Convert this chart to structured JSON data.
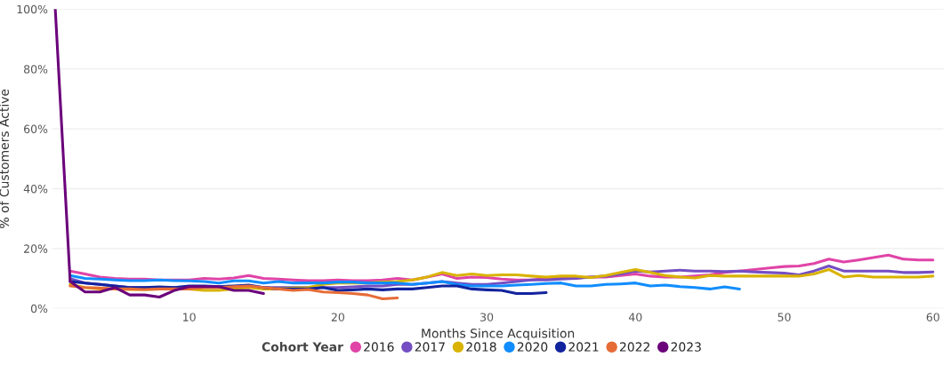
{
  "chart_data": {
    "type": "line",
    "xlabel": "Months Since Acquisition",
    "ylabel": "% of Customers Active",
    "legend_title": "Cohort Year",
    "xlim": [
      0.8,
      60.7
    ],
    "xticks": [
      10,
      20,
      30,
      40,
      50,
      60
    ],
    "ylim": [
      0,
      100
    ],
    "yticks": [
      {
        "value": 0,
        "label": "0%"
      },
      {
        "value": 20,
        "label": "20%"
      },
      {
        "value": 40,
        "label": "40%"
      },
      {
        "value": 60,
        "label": "60%"
      },
      {
        "value": 80,
        "label": "80%"
      },
      {
        "value": 100,
        "label": "100%"
      }
    ],
    "grid": "y",
    "legend": "bottom",
    "marker": "none",
    "line_style": "solid",
    "series": [
      {
        "name": "2016",
        "color": "#e044a7",
        "x": [
          2,
          3,
          4,
          5,
          6,
          7,
          8,
          9,
          10,
          11,
          12,
          13,
          14,
          15,
          16,
          17,
          18,
          19,
          20,
          21,
          22,
          23,
          24,
          25,
          26,
          27,
          28,
          29,
          30,
          31,
          32,
          33,
          34,
          35,
          36,
          37,
          38,
          39,
          40,
          41,
          42,
          43,
          44,
          45,
          46,
          47,
          48,
          49,
          50,
          51,
          52,
          53,
          54,
          55,
          56,
          57,
          58,
          59,
          60
        ],
        "values": [
          12.5,
          11.5,
          10.5,
          10,
          9.8,
          9.8,
          9.5,
          9.5,
          9.5,
          10,
          9.8,
          10.2,
          11,
          10,
          9.8,
          9.5,
          9.3,
          9.3,
          9.5,
          9.3,
          9.3,
          9.5,
          10,
          9.5,
          10.5,
          11.5,
          10,
          10.5,
          10.3,
          9.8,
          9.5,
          9.5,
          10,
          10,
          10.2,
          10.5,
          10.5,
          11,
          11.5,
          10.8,
          10.5,
          10.5,
          10.8,
          11.2,
          12,
          12.5,
          13,
          13.5,
          14,
          14.2,
          15,
          16.5,
          15.5,
          16.2,
          17,
          17.8,
          16.5,
          16.2,
          16.2
        ]
      },
      {
        "name": "2017",
        "color": "#744ec2",
        "x": [
          2,
          3,
          4,
          5,
          6,
          7,
          8,
          9,
          10,
          11,
          12,
          13,
          14,
          15,
          16,
          17,
          18,
          19,
          20,
          21,
          22,
          23,
          24,
          25,
          26,
          27,
          28,
          29,
          30,
          31,
          32,
          33,
          34,
          35,
          36,
          37,
          38,
          39,
          40,
          41,
          42,
          43,
          44,
          45,
          46,
          47,
          48,
          49,
          50,
          51,
          52,
          53,
          54,
          55,
          56,
          57,
          58,
          59,
          60
        ],
        "values": [
          10,
          8.5,
          8,
          7.5,
          7,
          7,
          7,
          7,
          7,
          7,
          7,
          7,
          7.2,
          7,
          7,
          7,
          7,
          7,
          7,
          7.2,
          7.5,
          7.5,
          8,
          8,
          8.5,
          9,
          8.5,
          8,
          8,
          8.5,
          9,
          9.5,
          9.5,
          9.8,
          10,
          10.5,
          10.8,
          11.5,
          12.5,
          12.2,
          12.5,
          12.8,
          12.5,
          12.5,
          12.3,
          12.5,
          12.2,
          12,
          11.8,
          11.2,
          12.5,
          14.2,
          12.5,
          12.5,
          12.5,
          12.5,
          12,
          12,
          12.2
        ]
      },
      {
        "name": "2018",
        "color": "#d9b300",
        "x": [
          2,
          3,
          4,
          5,
          6,
          7,
          8,
          9,
          10,
          11,
          12,
          13,
          14,
          15,
          16,
          17,
          18,
          19,
          20,
          21,
          22,
          23,
          24,
          25,
          26,
          27,
          28,
          29,
          30,
          31,
          32,
          33,
          34,
          35,
          36,
          37,
          38,
          39,
          40,
          41,
          42,
          43,
          44,
          45,
          46,
          47,
          48,
          49,
          50,
          51,
          52,
          53,
          54,
          55,
          56,
          57,
          58,
          59,
          60
        ],
        "values": [
          8,
          7,
          6.5,
          6.5,
          6.3,
          6.3,
          6.5,
          6.5,
          6.5,
          6,
          6,
          6.5,
          7,
          6.5,
          6.5,
          6.8,
          7,
          8,
          8.5,
          8.5,
          8.5,
          8.8,
          9,
          9.5,
          10.5,
          12,
          11,
          11.5,
          11,
          11.2,
          11.2,
          10.8,
          10.5,
          10.8,
          10.8,
          10.3,
          11,
          12,
          13,
          12,
          11,
          10.5,
          10.2,
          11,
          10.8,
          10.8,
          10.8,
          10.8,
          10.8,
          10.8,
          11.5,
          13,
          10.5,
          11,
          10.5,
          10.5,
          10.5,
          10.5,
          10.8
        ]
      },
      {
        "name": "2020",
        "color": "#118dff",
        "x": [
          2,
          3,
          4,
          5,
          6,
          7,
          8,
          9,
          10,
          11,
          12,
          13,
          14,
          15,
          16,
          17,
          18,
          19,
          20,
          21,
          22,
          23,
          24,
          25,
          26,
          27,
          28,
          29,
          30,
          31,
          32,
          33,
          34,
          35,
          36,
          37,
          38,
          39,
          40,
          41,
          42,
          43,
          44,
          45,
          46,
          47
        ],
        "values": [
          11,
          10,
          9.8,
          9.5,
          9.3,
          9.3,
          9.5,
          9.3,
          9.2,
          9,
          8.5,
          9.2,
          9.2,
          8.5,
          9,
          8.5,
          8.5,
          8.5,
          8.8,
          8.8,
          8.5,
          8.5,
          8.5,
          8,
          8.5,
          9,
          8,
          7.5,
          7.5,
          7.5,
          7.8,
          8,
          8.3,
          8.5,
          7.5,
          7.5,
          8,
          8.2,
          8.5,
          7.5,
          7.8,
          7.3,
          7,
          6.5,
          7.2,
          6.5
        ]
      },
      {
        "name": "2021",
        "color": "#12239e",
        "x": [
          2,
          3,
          4,
          5,
          6,
          7,
          8,
          9,
          10,
          11,
          12,
          13,
          14,
          15,
          16,
          17,
          18,
          19,
          20,
          21,
          22,
          23,
          24,
          25,
          26,
          27,
          28,
          29,
          30,
          31,
          32,
          33,
          34
        ],
        "values": [
          9,
          8.5,
          8,
          7.5,
          7,
          7,
          7.2,
          7,
          7.5,
          7.5,
          7.3,
          7.5,
          7.8,
          7,
          6.5,
          6.5,
          6.5,
          7,
          6,
          6.2,
          6.5,
          6.2,
          6.5,
          6.5,
          7,
          7.5,
          7.5,
          6.5,
          6.2,
          6,
          5,
          5,
          5.3
        ]
      },
      {
        "name": "2022",
        "color": "#e66c37",
        "x": [
          2,
          3,
          4,
          5,
          6,
          7,
          8,
          9,
          10,
          11,
          12,
          13,
          14,
          15,
          16,
          17,
          18,
          19,
          20,
          21,
          22,
          23,
          24
        ],
        "values": [
          7.5,
          7,
          6.8,
          6.5,
          6.5,
          6.3,
          6.5,
          6.5,
          6.5,
          7,
          7,
          7.3,
          7.5,
          7,
          6.5,
          6,
          6.3,
          5.5,
          5.3,
          5,
          4.5,
          3.2,
          3.5
        ]
      },
      {
        "name": "2023",
        "color": "#6b007b",
        "x": [
          1,
          2,
          3,
          4,
          5,
          6,
          7,
          8,
          9,
          10,
          11,
          12,
          13,
          14,
          15
        ],
        "values": [
          100,
          9,
          5.5,
          5.5,
          7,
          4.5,
          4.5,
          3.8,
          6,
          7.3,
          7.3,
          7.3,
          6,
          6,
          5
        ]
      }
    ]
  }
}
